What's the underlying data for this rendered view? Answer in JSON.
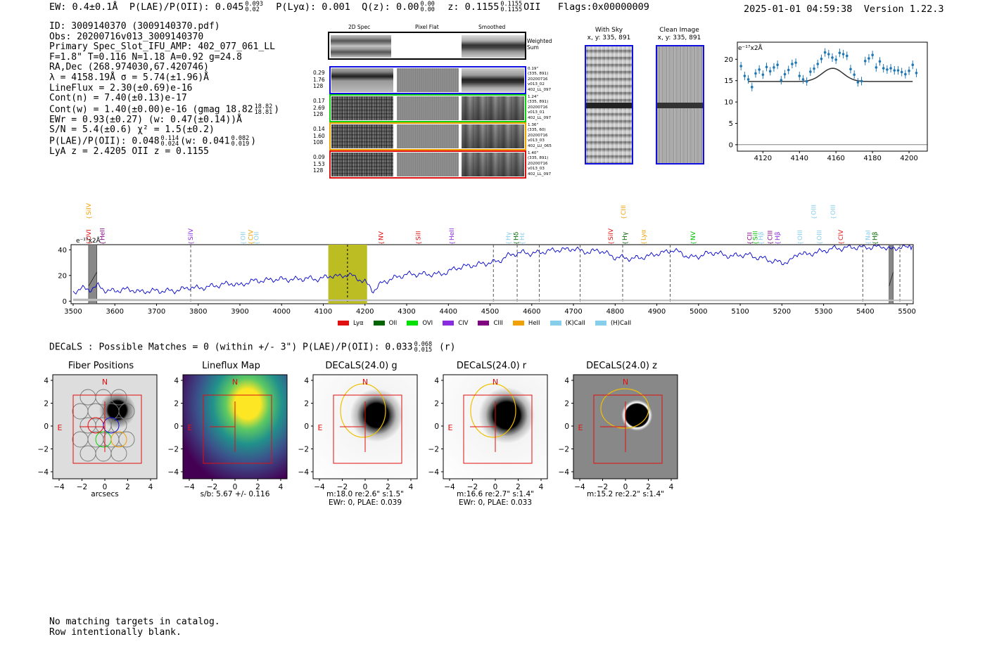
{
  "header": {
    "ew": "EW: 0.4±0.1Å",
    "plae_label": "P(LAE)/P(OII): 0.045",
    "plae_hi": "0.093",
    "plae_lo": "0.02",
    "plya": "P(Lyα): 0.001",
    "qz_label": "Q(z): 0.00",
    "qz_hi": "0.00",
    "qz_lo": "0.00",
    "z_label": "z: 0.1155",
    "z_hi": "0.1155",
    "z_lo": "0.1155",
    "z_line": "OII",
    "flags": "Flags:0x00000009",
    "timestamp": "2025-01-01 04:59:38",
    "version": "Version 1.22.3"
  },
  "info": {
    "id": "ID: 3009140370 (3009140370.pdf)",
    "obs": "Obs: 20200716v013_3009140370",
    "primary": "Primary Spec_Slot_IFU_AMP: 402_077_061_LL",
    "params": "F=1.8\"  T=0.116  N=1.18  A=0.92  g=24.8",
    "radec": "RA,Dec (268.974030,67.420746)",
    "lambda": "λ = 4158.19Å  σ = 5.74(±1.96)Å",
    "lineflux": "LineFlux = 2.30(±0.69)e-16",
    "contn": "Cont(n) = 7.40(±0.13)e-17",
    "contw_a": "Cont(w) = 1.40(±0.00)e-16 (gmag 18.82",
    "contw_hi": "18.82",
    "contw_lo": "18.81",
    "contw_b": ")",
    "ewr": "EWr = 0.93(±0.27) (w: 0.47(±0.14))Å",
    "sn": "S/N = 5.4(±0.6)  χ² = 1.5(±0.2)",
    "plae_a": "P(LAE)/P(OII): 0.048",
    "plae_hi": "0.114",
    "plae_lo": "0.024",
    "plae_b": "(w: 0.041",
    "plae_w_hi": "0.082",
    "plae_w_lo": "0.019",
    "plae_c": ")",
    "lya": "LyA z = 2.4205   OII z = 0.1155"
  },
  "cutouts": {
    "col_headers": [
      "2D Spec",
      "Pixel Flat",
      "Smoothed"
    ],
    "weighted_sum": "Weighted Sum",
    "rows": [
      {
        "stats": [
          "0.29",
          "1.76",
          "128"
        ],
        "meta": [
          "0.19\"",
          "(335, 891)",
          "20200716",
          "v013_02",
          "402_LL_097"
        ],
        "color": "#1010e0"
      },
      {
        "stats": [
          "0.17",
          "2.69",
          "128"
        ],
        "meta": [
          "1.24\"",
          "(335, 891)",
          "20200716",
          "v013_01",
          "402_LL_097"
        ],
        "color": "#10d010"
      },
      {
        "stats": [
          "0.14",
          "1.60",
          "108"
        ],
        "meta": [
          "1.36\"",
          "(335, 60)",
          "20200716",
          "v013_03",
          "402_LU_065"
        ],
        "color": "#f0a000"
      },
      {
        "stats": [
          "0.09",
          "1.53",
          "128"
        ],
        "meta": [
          "1.40\"",
          "(335, 891)",
          "20200716",
          "v013_03",
          "402_LL_097"
        ],
        "color": "#e01010"
      }
    ]
  },
  "sky": {
    "with_sky_title": "With Sky",
    "with_sky_xy": "x, y: 335, 891",
    "clean_title": "Clean Image",
    "clean_xy": "x, y: 335, 891"
  },
  "zoom_chart": {
    "unit_label": "e⁻¹⁷x2Å",
    "x_ticks": [
      "4120",
      "4140",
      "4160",
      "4180",
      "4200"
    ],
    "y_ticks": [
      "0",
      "5",
      "10",
      "15",
      "20"
    ]
  },
  "chart_data": [
    {
      "type": "line",
      "title": "zoom spectrum",
      "xlabel": "",
      "ylabel": "e⁻¹⁷x2Å",
      "xlim": [
        4106,
        4210
      ],
      "ylim": [
        -1.5,
        24
      ],
      "series": [
        {
          "name": "data",
          "x": [
            4108,
            4110,
            4112,
            4114,
            4116,
            4118,
            4120,
            4122,
            4124,
            4126,
            4128,
            4130,
            4132,
            4134,
            4136,
            4138,
            4140,
            4142,
            4144,
            4146,
            4148,
            4150,
            4152,
            4154,
            4156,
            4158,
            4160,
            4162,
            4164,
            4166,
            4168,
            4170,
            4172,
            4174,
            4176,
            4178,
            4180,
            4182,
            4184,
            4186,
            4188,
            4190,
            4192,
            4194,
            4196,
            4198,
            4200,
            4202,
            4204
          ],
          "y": [
            18.4,
            16.1,
            15.3,
            13.5,
            16.7,
            17.6,
            16.4,
            18.2,
            17.2,
            18.1,
            18.7,
            15.1,
            16.5,
            17.5,
            18.9,
            19.2,
            16.1,
            15.3,
            14.8,
            17.1,
            17.8,
            18.9,
            20.1,
            21.6,
            21.2,
            20.4,
            19.9,
            21.5,
            21.2,
            20.8,
            17.7,
            16.4,
            14.6,
            14.9,
            19.6,
            20.2,
            21.0,
            18.1,
            19.5,
            17.9,
            17.6,
            17.9,
            17.4,
            17.4,
            17.0,
            16.5,
            17.3,
            18.7,
            16.8
          ],
          "yerr": [
            1.0,
            1.0,
            1.0,
            1.0,
            1.0,
            1.0,
            1.0,
            1.0,
            1.0,
            1.0,
            1.0,
            1.0,
            1.0,
            1.0,
            1.0,
            1.0,
            1.0,
            1.0,
            1.0,
            1.0,
            1.0,
            1.0,
            1.0,
            1.0,
            1.0,
            1.0,
            1.0,
            1.0,
            1.0,
            1.0,
            1.0,
            1.0,
            1.0,
            1.0,
            1.0,
            1.0,
            1.0,
            1.0,
            1.0,
            1.0,
            1.0,
            1.0,
            1.0,
            1.0,
            1.0,
            1.0,
            1.0,
            1.0,
            1.0
          ]
        },
        {
          "name": "fit",
          "center": 4158.19,
          "sigma": 5.74,
          "continuum": 14.8,
          "amplitude": 3.1
        }
      ]
    },
    {
      "type": "line",
      "title": "full spectrum",
      "xlabel": "",
      "ylabel": "e⁻¹⁷x2Å",
      "xlim": [
        3495,
        5515
      ],
      "ylim": [
        -2,
        44
      ],
      "series": [
        {
          "name": "flux",
          "x": [
            3500,
            3520,
            3540,
            3560,
            3580,
            3600,
            3620,
            3640,
            3660,
            3680,
            3700,
            3720,
            3740,
            3760,
            3780,
            3800,
            3820,
            3840,
            3860,
            3880,
            3900,
            3920,
            3940,
            3960,
            3980,
            4000,
            4020,
            4040,
            4060,
            4080,
            4100,
            4120,
            4140,
            4160,
            4180,
            4200,
            4220,
            4240,
            4260,
            4280,
            4300,
            4320,
            4340,
            4360,
            4380,
            4400,
            4420,
            4440,
            4460,
            4480,
            4500,
            4520,
            4540,
            4560,
            4580,
            4600,
            4620,
            4640,
            4660,
            4680,
            4700,
            4720,
            4740,
            4760,
            4780,
            4800,
            4820,
            4840,
            4860,
            4880,
            4900,
            4920,
            4940,
            4960,
            4980,
            5000,
            5020,
            5040,
            5060,
            5080,
            5100,
            5120,
            5140,
            5160,
            5180,
            5200,
            5220,
            5240,
            5260,
            5280,
            5300,
            5320,
            5340,
            5360,
            5380,
            5400,
            5420,
            5440,
            5460,
            5480,
            5500,
            5515
          ],
          "y": [
            7,
            10,
            9,
            12,
            8,
            8,
            9,
            9,
            7,
            8,
            8,
            8,
            8,
            9,
            11,
            10,
            11,
            12,
            13,
            14,
            12,
            15,
            16,
            16,
            17,
            17,
            17,
            17,
            18,
            17,
            18,
            20,
            19,
            21,
            18,
            15,
            8,
            14,
            17,
            19,
            21,
            21,
            21,
            21,
            21,
            23,
            26,
            27,
            28,
            29,
            30,
            31,
            35,
            37,
            38,
            37,
            38,
            39,
            40,
            40,
            41,
            39,
            38,
            40,
            37,
            34,
            34,
            33,
            34,
            35,
            37,
            38,
            40,
            37,
            34,
            35,
            37,
            38,
            36,
            35,
            36,
            36,
            34,
            33,
            31,
            30,
            31,
            38,
            36,
            38,
            39,
            41,
            41,
            42,
            42,
            42,
            42,
            43,
            40,
            42,
            42,
            43
          ]
        },
        {
          "name": "error",
          "x": [
            3500,
            3700,
            3900,
            4100,
            4300,
            4500,
            4700,
            4900,
            5100,
            5300,
            5515
          ],
          "y": [
            2,
            1.5,
            1.4,
            1.3,
            1.3,
            1.2,
            1.2,
            1.2,
            1.2,
            1.2,
            1.2
          ]
        }
      ],
      "x_ticks": [
        "3500",
        "3600",
        "3700",
        "3800",
        "3900",
        "4000",
        "4100",
        "4200",
        "4300",
        "4400",
        "4500",
        "4600",
        "4700",
        "4800",
        "4900",
        "5000",
        "5100",
        "5200",
        "5300",
        "5400",
        "5500"
      ],
      "y_ticks": [
        "0",
        "20",
        "40"
      ],
      "highlight_band": [
        4112,
        4205
      ],
      "emission_line_marker": 4158,
      "masked_bands": [
        [
          3537,
          3557
        ],
        [
          5457,
          5467
        ]
      ],
      "absorption_markers": [
        3782,
        4508,
        4565,
        4618,
        4716,
        4818,
        4932,
        5394,
        5483
      ]
    }
  ],
  "spectrum": {
    "unit_label": "e⁻¹⁷x2Å",
    "line_labels": [
      {
        "text": "SiIV",
        "color": "#f0a000",
        "row": "high",
        "wave": 3537
      },
      {
        "text": "OVI",
        "color": "#e01010",
        "row": "low",
        "wave": 3537
      },
      {
        "text": "HeII",
        "color": "#800080",
        "row": "low",
        "wave": 3570
      },
      {
        "text": "SiIV",
        "color": "#8a2be2",
        "row": "low",
        "wave": 3782
      },
      {
        "text": "OII",
        "color": "#87ceeb",
        "row": "low",
        "wave": 3908
      },
      {
        "text": "CIV",
        "color": "#f0a000",
        "row": "low",
        "wave": 3926
      },
      {
        "text": "OII",
        "color": "#87ceeb",
        "row": "low",
        "wave": 3940
      },
      {
        "text": "NV",
        "color": "#e01010",
        "row": "low",
        "wave": 4238
      },
      {
        "text": "SiII",
        "color": "#e01010",
        "row": "low",
        "wave": 4328
      },
      {
        "text": "HeII",
        "color": "#8a2be2",
        "row": "low",
        "wave": 4408
      },
      {
        "text": "Hγ",
        "color": "#87ceeb",
        "row": "low",
        "wave": 4544
      },
      {
        "text": "Hδ",
        "color": "#006400",
        "row": "low",
        "wave": 4562
      },
      {
        "text": "Hε",
        "color": "#87ceeb",
        "row": "low",
        "wave": 4577
      },
      {
        "text": "SiIV",
        "color": "#e01010",
        "row": "low",
        "wave": 4789
      },
      {
        "text": "CIII",
        "color": "#f0a000",
        "row": "high",
        "wave": 4820
      },
      {
        "text": "Hγ",
        "color": "#006400",
        "row": "low",
        "wave": 4823
      },
      {
        "text": "Lyα",
        "color": "#f0a000",
        "row": "low",
        "wave": 4868
      },
      {
        "text": "NV",
        "color": "#00c000",
        "row": "low",
        "wave": 4987
      },
      {
        "text": "CII",
        "color": "#800080",
        "row": "low",
        "wave": 5123
      },
      {
        "text": "SiII",
        "color": "#00c000",
        "row": "low",
        "wave": 5136
      },
      {
        "text": "Hβ",
        "color": "#87ceeb",
        "row": "low",
        "wave": 5150
      },
      {
        "text": "CIII",
        "color": "#800080",
        "row": "low",
        "wave": 5172
      },
      {
        "text": "Hβ",
        "color": "#8a2be2",
        "row": "low",
        "wave": 5189
      },
      {
        "text": "OIII",
        "color": "#87ceeb",
        "row": "low",
        "wave": 5243
      },
      {
        "text": "OIII",
        "color": "#87ceeb",
        "row": "high",
        "wave": 5276
      },
      {
        "text": "OIII",
        "color": "#87ceeb",
        "row": "low",
        "wave": 5290
      },
      {
        "text": "OIII",
        "color": "#87ceeb",
        "row": "high",
        "wave": 5323
      },
      {
        "text": "CIV",
        "color": "#e01010",
        "row": "low",
        "wave": 5341
      },
      {
        "text": "NaI",
        "color": "#87ceeb",
        "row": "low",
        "wave": 5406
      },
      {
        "text": "Hβ",
        "color": "#006400",
        "row": "low",
        "wave": 5423
      }
    ],
    "legend": [
      {
        "label": "Lyα",
        "color": "#e01010"
      },
      {
        "label": "OII",
        "color": "#006400"
      },
      {
        "label": "OVI",
        "color": "#00e000"
      },
      {
        "label": "CIV",
        "color": "#8a2be2"
      },
      {
        "label": "CIII",
        "color": "#800080"
      },
      {
        "label": "HeII",
        "color": "#f0a000"
      },
      {
        "label": "(K)CaII",
        "color": "#87ceeb"
      },
      {
        "label": "(H)CaII",
        "color": "#87ceeb"
      }
    ]
  },
  "decals": {
    "summary_a": "DECaLS : Possible Matches = 0 (within +/- 3\")  P(LAE)/P(OII): 0.033",
    "summary_hi": "0.068",
    "summary_lo": "0.015",
    "summary_b": "(r)",
    "panels": [
      {
        "title": "Fiber Positions",
        "captions": [
          "arcsecs"
        ],
        "compass_n": "N",
        "compass_e": "E"
      },
      {
        "title": "Lineflux Map",
        "captions": [
          "s/b: 5.67 +/- 0.116"
        ],
        "compass_n": "N",
        "compass_e": "E"
      },
      {
        "title": "DECaLS(24.0) g",
        "captions": [
          "m:18.0  re:2.6\"  s:1.5\"",
          "EWr: 0, PLAE: 0.039"
        ],
        "compass_n": "N",
        "compass_e": "E"
      },
      {
        "title": "DECaLS(24.0) r",
        "captions": [
          "m:16.6  re:2.7\"  s:1.4\"",
          "EWr: 0, PLAE: 0.033"
        ],
        "compass_n": "N",
        "compass_e": "E"
      },
      {
        "title": "DECaLS(24.0) z",
        "captions": [
          "m:15.2  re:2.2\"  s:1.4\""
        ],
        "compass_n": "N",
        "compass_e": "E"
      }
    ],
    "axis_ticks": [
      "4",
      "2",
      "0",
      "−2",
      "−4"
    ],
    "x_axis_ticks": [
      "−4",
      "−2",
      "0",
      "2",
      "4"
    ]
  },
  "footer": {
    "line1": "No matching targets in catalog.",
    "line2": "Row intentionally blank."
  }
}
